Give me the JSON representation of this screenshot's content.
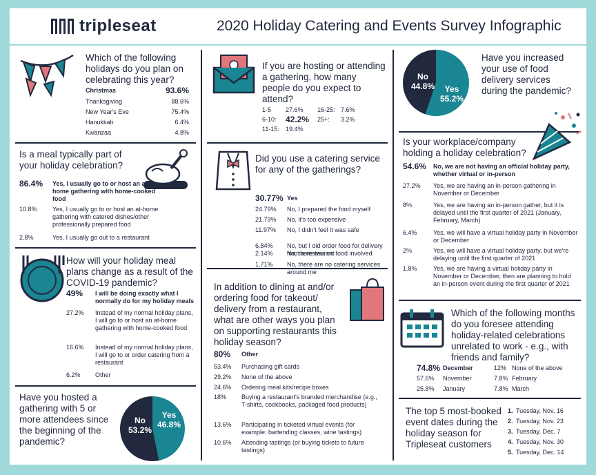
{
  "header": {
    "brand": "tripleseat",
    "title": "2020 Holiday Catering and Events Survey Infographic"
  },
  "colors": {
    "navy": "#22293f",
    "teal": "#1a8593",
    "pink": "#e1777a",
    "bg": "#9fd9da"
  },
  "q1": {
    "question": "Which of the following holidays do you plan on celebrating this year?",
    "items": [
      {
        "label": "Christmas",
        "pct": "93.6%"
      },
      {
        "label": "Thanksgiving",
        "pct": "88.6%"
      },
      {
        "label": "New Year's Eve",
        "pct": "75.4%"
      },
      {
        "label": "Hanukkah",
        "pct": "6.4%"
      },
      {
        "label": "Kwanzaa",
        "pct": "4.8%"
      }
    ]
  },
  "q2": {
    "question": "Is a meal typically part of your holiday celebration?",
    "items": [
      {
        "pct": "86.4%",
        "label": "Yes, I usually go to or host an at-home gathering with home-cooked food"
      },
      {
        "pct": "10.8%",
        "label": "Yes, I usually go to or host an at-home gathering with catered dishes/other professionally prepared food"
      },
      {
        "pct": "2.8%",
        "label": "Yes, I usually go out to a restaurant"
      }
    ]
  },
  "q3": {
    "question": "How will your holiday meal plans change as a result of the COVID-19 pandemic?",
    "items": [
      {
        "pct": "49%",
        "label": "I will be doing exactly what I normally do for my holiday meals"
      },
      {
        "pct": "27.2%",
        "label": "Instead of my normal holiday plans, I will go to or host an at-home gathering with home-cooked food"
      },
      {
        "pct": "16.6%",
        "label": "Instead of my normal holiday plans, I will go to or order catering from a restaurant"
      },
      {
        "pct": "6.2%",
        "label": "Other"
      }
    ]
  },
  "q4": {
    "question": "Have you hosted a gathering with 5 or more attendees since the beginning of the pandemic?",
    "no_label": "No",
    "no_pct": "53.2%",
    "yes_label": "Yes",
    "yes_pct": "46.8%",
    "yes_value": 46.8
  },
  "q5": {
    "question": "If you are hosting or attending a gathering, how many people do you expect to attend?",
    "left": [
      {
        "label": "1-5",
        "pct": "27.6%"
      },
      {
        "label": "6-10:",
        "pct": "42.2%"
      },
      {
        "label": "11-15:",
        "pct": "19.4%"
      }
    ],
    "right": [
      {
        "label": "16-25:",
        "pct": "7.6%"
      },
      {
        "label": "25+:",
        "pct": "3.2%"
      }
    ]
  },
  "q6": {
    "question": "Did you use a catering service for any of the gatherings?",
    "items": [
      {
        "pct": "30.77%",
        "label": "Yes"
      },
      {
        "pct": "24.79%",
        "label": "No, I prepared the food myself"
      },
      {
        "pct": "21.79%",
        "label": "No, it's too expensive"
      },
      {
        "pct": "11.97%",
        "label": "No, I didn't feel it was safe"
      },
      {
        "pct": "6.84%",
        "label": "No, but I did order food for delivery from a restaurant"
      },
      {
        "pct": "2.14%",
        "label": "No, there was no food involved"
      },
      {
        "pct": "1.71%",
        "label": "No, there are no catering services around me"
      }
    ]
  },
  "q7": {
    "question": "In addition to dining at and/or ordering food for takeout/ delivery from a restaurant, what are other ways you plan on supporting restaurants this holiday season?",
    "items": [
      {
        "pct": "80%",
        "label": "Other"
      },
      {
        "pct": "53.4%",
        "label": "Purchasing gift cards"
      },
      {
        "pct": "29.2%",
        "label": "None of the above"
      },
      {
        "pct": "24.6%",
        "label": "Ordering meal kits/recipe boxes"
      },
      {
        "pct": "18%",
        "label": "Buying a restaurant's branded merchandise (e.g., T-shirts, cookbooks, packaged food products)"
      },
      {
        "pct": "13.6%",
        "label": "Participating in ticketed virtual events (for example: bartending classes, wine tastings)"
      },
      {
        "pct": "10.6%",
        "label": "Attending tastings (or buying tickets to future tastings)"
      }
    ]
  },
  "q8": {
    "question": "Have you increased your use of food delivery services during the pandemic?",
    "no_label": "No",
    "no_pct": "44.8%",
    "yes_label": "Yes",
    "yes_pct": "55.2%",
    "yes_value": 55.2
  },
  "q9": {
    "question": "Is your workplace/company holding a holiday celebration?",
    "items": [
      {
        "pct": "54.6%",
        "label": "No, we are not having an official holiday party, whether virtual or in-person"
      },
      {
        "pct": "27.2%",
        "label": "Yes, we are having an in-person gathering in November or December"
      },
      {
        "pct": "8%",
        "label": "Yes, we are having an in-person gather, but it is delayed until the first quarter of 2021 (January, February, March)"
      },
      {
        "pct": "6.4%",
        "label": "Yes, we will have a virtual holiday party in November or December"
      },
      {
        "pct": "2%",
        "label": "Yes, we will have a virtual holiday party, but we're delaying until the first quarter of 2021"
      },
      {
        "pct": "1.8%",
        "label": "Yes, we are having a virtual holiday party in November or December, then are planning to hold an in-person event during the first quarter of 2021"
      }
    ]
  },
  "q10": {
    "question": "Which of the following months do you foresee attending holiday-related celebrations unrelated to work - e.g., with friends and family?",
    "left": [
      {
        "pct": "74.8%",
        "label": "December"
      },
      {
        "pct": "57.6%",
        "label": "November"
      },
      {
        "pct": "25.8%",
        "label": "January"
      }
    ],
    "right": [
      {
        "pct": "12%",
        "label": "None of the above"
      },
      {
        "pct": "7.8%",
        "label": "February"
      },
      {
        "pct": "7.8%",
        "label": "March"
      }
    ]
  },
  "q11": {
    "question": "The top 5 most-booked event dates during the holiday season for Tripleseat customers",
    "dates": [
      {
        "n": "1.",
        "d": "Tuesday, Nov. 16"
      },
      {
        "n": "2.",
        "d": "Tuesday, Nov. 23"
      },
      {
        "n": "3.",
        "d": "Tuesday, Dec. 7"
      },
      {
        "n": "4.",
        "d": "Tuesday, Nov. 30"
      },
      {
        "n": "5.",
        "d": "Tuesday, Dec. 14"
      }
    ]
  }
}
